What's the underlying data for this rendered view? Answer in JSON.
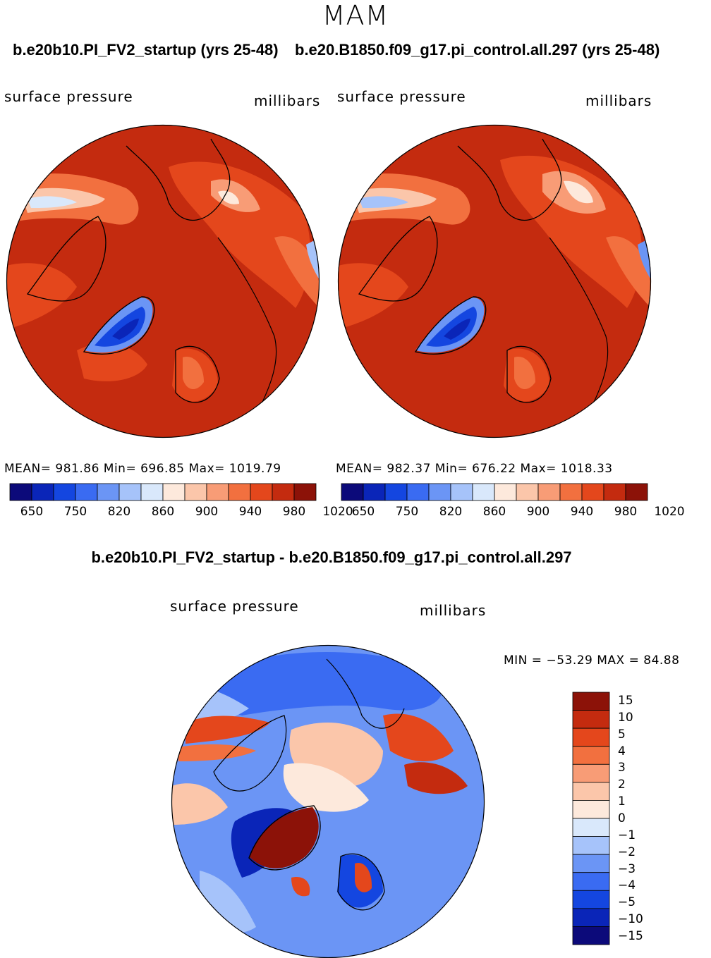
{
  "figure": {
    "season": "MAM"
  },
  "panels": [
    {
      "case_title": "b.e20b10.PI_FV2_startup (yrs 25-48)",
      "variable": "surface pressure",
      "units": "millibars",
      "stats": "MEAN= 981.86   Min= 696.85   Max= 1019.79",
      "mean": 981.86,
      "min": 696.85,
      "max": 1019.79
    },
    {
      "case_title": "b.e20.B1850.f09_g17.pi_control.all.297 (yrs 25-48)",
      "variable": "surface pressure",
      "units": "millibars",
      "stats": "MEAN= 982.37   Min= 676.22   Max= 1018.33",
      "mean": 982.37,
      "min": 676.22,
      "max": 1018.33
    }
  ],
  "colorbar_main": {
    "colors": [
      "#0c0a7a",
      "#0a25b8",
      "#1446e0",
      "#3a6bf2",
      "#6b95f5",
      "#a6c3fa",
      "#d9e8fb",
      "#fde9dc",
      "#fbc6aa",
      "#f89c76",
      "#f2703f",
      "#e4471c",
      "#c42b0f",
      "#8c1208"
    ],
    "tick_labels": [
      "650",
      "750",
      "820",
      "860",
      "900",
      "940",
      "980",
      "1020"
    ]
  },
  "difference": {
    "title": "b.e20b10.PI_FV2_startup - b.e20.B1850.f09_g17.pi_control.all.297",
    "variable": "surface pressure",
    "units": "millibars",
    "stats": "MIN = −53.29 MAX =  84.88",
    "min": -53.29,
    "max": 84.88,
    "colorbar": {
      "colors": [
        "#8c1208",
        "#c42b0f",
        "#e4471c",
        "#f2703f",
        "#f89c76",
        "#fbc6aa",
        "#fde9dc",
        "#d9e8fb",
        "#a6c3fa",
        "#6b95f5",
        "#3a6bf2",
        "#1446e0",
        "#0a25b8",
        "#0c0a7a"
      ],
      "tick_labels": [
        "15",
        "10",
        "5",
        "4",
        "3",
        "2",
        "1",
        "0",
        "−1",
        "−2",
        "−3",
        "−4",
        "−5",
        "−10",
        "−15"
      ]
    }
  }
}
